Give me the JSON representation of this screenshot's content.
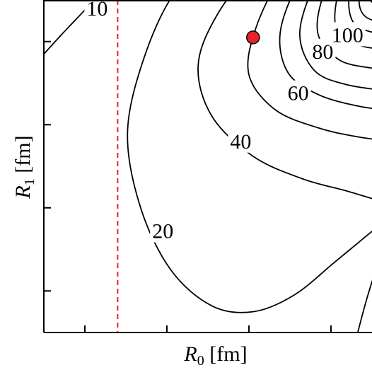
{
  "chart_data": {
    "type": "contour",
    "title": "",
    "xlabel": {
      "var": "R",
      "sub": "0",
      "unit": " [fm]"
    },
    "ylabel": {
      "var": "R",
      "sub": "1",
      "unit": " [fm]"
    },
    "xlim": [
      0,
      4
    ],
    "ylim": [
      0,
      4
    ],
    "xticks": [
      0.5,
      1.5,
      2.5,
      3.5
    ],
    "yticks": [
      0.5,
      1.5,
      2.5,
      3.5
    ],
    "grid": false,
    "legend": "none",
    "colors": {
      "contour": "#000000",
      "reference_line": "#e8222a",
      "marker_fill": "#e8222a",
      "marker_edge": "#000000"
    },
    "reference_line": {
      "x": 0.9,
      "style": "dashed"
    },
    "marker": {
      "x": 2.55,
      "y": 3.55
    },
    "contour_labels": [
      {
        "text": "10",
        "x": 0.65,
        "y": 3.9
      },
      {
        "text": "20",
        "x": 1.45,
        "y": 1.22
      },
      {
        "text": "40",
        "x": 2.4,
        "y": 2.3
      },
      {
        "text": "60",
        "x": 3.1,
        "y": 2.88
      },
      {
        "text": "80",
        "x": 3.4,
        "y": 3.38
      },
      {
        "text": "100",
        "x": 3.7,
        "y": 3.58
      }
    ],
    "contours": [
      {
        "level": 10,
        "points": [
          [
            0,
            3.35
          ],
          [
            0.25,
            3.62
          ],
          [
            0.5,
            3.88
          ],
          [
            0.75,
            4.15
          ],
          [
            1.05,
            4.5
          ],
          [
            1.35,
            4.95
          ]
        ]
      },
      {
        "level": 20,
        "points": [
          [
            2.8,
            5.1
          ],
          [
            2.2,
            4.7
          ],
          [
            1.6,
            4.1
          ],
          [
            1.22,
            3.3
          ],
          [
            1.02,
            2.4
          ],
          [
            1.18,
            1.5
          ],
          [
            1.55,
            0.75
          ],
          [
            2.05,
            0.32
          ],
          [
            2.55,
            0.25
          ],
          [
            3.05,
            0.45
          ],
          [
            3.55,
            0.85
          ],
          [
            4.1,
            1.3
          ]
        ]
      },
      {
        "level": 30,
        "points": [
          [
            3.15,
            4.95
          ],
          [
            2.6,
            4.45
          ],
          [
            2.1,
            3.8
          ],
          [
            1.88,
            3.2
          ],
          [
            2.05,
            2.6
          ],
          [
            2.55,
            2.12
          ],
          [
            3.15,
            1.85
          ],
          [
            3.7,
            1.7
          ],
          [
            4.2,
            1.55
          ]
        ]
      },
      {
        "level": 40,
        "points": [
          [
            3.35,
            4.85
          ],
          [
            2.9,
            4.3
          ],
          [
            2.58,
            3.65
          ],
          [
            2.5,
            3.1
          ],
          [
            2.82,
            2.68
          ],
          [
            3.35,
            2.46
          ],
          [
            3.85,
            2.35
          ],
          [
            4.25,
            2.3
          ]
        ]
      },
      {
        "level": 50,
        "points": [
          [
            3.5,
            4.75
          ],
          [
            3.1,
            4.2
          ],
          [
            2.88,
            3.6
          ],
          [
            2.98,
            3.12
          ],
          [
            3.35,
            2.86
          ],
          [
            3.85,
            2.72
          ],
          [
            4.25,
            2.67
          ]
        ]
      },
      {
        "level": 60,
        "points": [
          [
            3.6,
            4.7
          ],
          [
            3.28,
            4.15
          ],
          [
            3.12,
            3.58
          ],
          [
            3.3,
            3.15
          ],
          [
            3.7,
            2.98
          ],
          [
            4.25,
            2.9
          ]
        ]
      },
      {
        "level": 70,
        "points": [
          [
            3.7,
            4.65
          ],
          [
            3.42,
            4.1
          ],
          [
            3.34,
            3.6
          ],
          [
            3.6,
            3.28
          ],
          [
            4.0,
            3.18
          ],
          [
            4.25,
            3.16
          ]
        ]
      },
      {
        "level": 80,
        "points": [
          [
            3.8,
            4.6
          ],
          [
            3.58,
            4.05
          ],
          [
            3.58,
            3.62
          ],
          [
            3.9,
            3.44
          ],
          [
            4.25,
            3.42
          ]
        ]
      },
      {
        "level": 90,
        "points": [
          [
            3.85,
            4.55
          ],
          [
            3.72,
            4.05
          ],
          [
            3.78,
            3.72
          ],
          [
            4.05,
            3.6
          ],
          [
            4.25,
            3.58
          ]
        ]
      },
      {
        "level": 100,
        "points": [
          [
            3.92,
            4.5
          ],
          [
            3.84,
            4.05
          ],
          [
            3.92,
            3.8
          ],
          [
            4.25,
            3.7
          ]
        ]
      },
      {
        "level": 110,
        "points": [
          [
            3.98,
            4.4
          ],
          [
            3.93,
            4.08
          ],
          [
            4.1,
            3.9
          ],
          [
            4.25,
            3.87
          ]
        ]
      },
      {
        "level": 120,
        "points": [
          [
            4.03,
            4.35
          ],
          [
            4.02,
            4.12
          ],
          [
            4.25,
            4.02
          ]
        ]
      },
      {
        "level": 130,
        "points": [
          [
            4.08,
            4.3
          ],
          [
            4.1,
            4.18
          ],
          [
            4.25,
            4.12
          ]
        ]
      },
      {
        "level": 10,
        "points": [
          [
            3.8,
            -0.1
          ],
          [
            3.95,
            0.45
          ],
          [
            4.15,
            1.05
          ],
          [
            4.3,
            1.4
          ]
        ]
      }
    ]
  }
}
